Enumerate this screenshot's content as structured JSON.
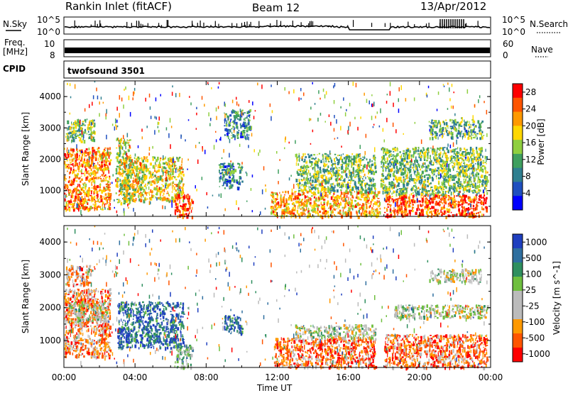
{
  "header": {
    "station": "Rankin Inlet (fitACF)",
    "beam": "Beam 12",
    "date": "13/Apr/2012"
  },
  "panels": {
    "nsky": {
      "label": "N.Sky",
      "right_label": "N.Search",
      "yticks_left": [
        "10^5",
        "10^0"
      ],
      "yticks_right": [
        "10^5",
        "10^0"
      ]
    },
    "freq": {
      "label_line1": "Freq.",
      "label_line2": "[MHz]",
      "right_label": "Nave",
      "yticks_left": [
        "10",
        "8"
      ],
      "yticks_right": [
        "60",
        "0"
      ]
    },
    "cpid": {
      "label": "CPID",
      "value": "twofsound 3501"
    }
  },
  "xaxis": {
    "label": "Time UT",
    "ticks": [
      "00:00",
      "04:00",
      "08:00",
      "12:00",
      "16:00",
      "20:00",
      "00:00"
    ]
  },
  "colors": {
    "power_scale": [
      "#0000ff",
      "#1f4fbf",
      "#2f7f8f",
      "#3f9f5f",
      "#8fcf3f",
      "#ffd700",
      "#ff9900",
      "#ff5500",
      "#ff0000"
    ],
    "velocity_scale": [
      "#ff0000",
      "#ff5500",
      "#ff9900",
      "#bbbbbb",
      "#bbbbbb",
      "#6fbf3f",
      "#2f8f5f",
      "#2f6f9f",
      "#1f3fbf"
    ],
    "ground_scatter": "#bbbbbb"
  },
  "chart_data": [
    {
      "type": "heatmap",
      "name_label": "power",
      "ylabel": "Slant Range [km]",
      "yticks": [
        1000,
        2000,
        3000,
        4000
      ],
      "ylim": [
        180,
        4500
      ],
      "xlabel": "Time UT",
      "xlim_hours": [
        0,
        24
      ],
      "colorbar": {
        "label": "Power [dB]",
        "ticks": [
          "4",
          "8",
          "12",
          "16",
          "20",
          "24",
          "28"
        ],
        "range": [
          0,
          30
        ]
      },
      "regions": [
        {
          "t0": 0.0,
          "t1": 2.6,
          "r0": 400,
          "r1": 2400,
          "level": 0.75
        },
        {
          "t0": 0.1,
          "t1": 1.7,
          "r0": 2600,
          "r1": 3300,
          "level": 0.45
        },
        {
          "t0": 2.9,
          "t1": 3.7,
          "r0": 600,
          "r1": 2700,
          "level": 0.55
        },
        {
          "t0": 3.3,
          "t1": 6.7,
          "r0": 700,
          "r1": 2100,
          "level": 0.6
        },
        {
          "t0": 6.2,
          "t1": 7.2,
          "r0": 200,
          "r1": 900,
          "level": 0.85
        },
        {
          "t0": 8.7,
          "t1": 10.0,
          "r0": 1100,
          "r1": 1900,
          "level": 0.3
        },
        {
          "t0": 9.0,
          "t1": 10.5,
          "r0": 2700,
          "r1": 3600,
          "level": 0.3
        },
        {
          "t0": 11.6,
          "t1": 17.8,
          "r0": 200,
          "r1": 1000,
          "level": 0.7
        },
        {
          "t0": 13.0,
          "t1": 17.5,
          "r0": 1000,
          "r1": 2200,
          "level": 0.45
        },
        {
          "t0": 18.0,
          "t1": 23.8,
          "r0": 200,
          "r1": 900,
          "level": 0.85
        },
        {
          "t0": 17.8,
          "t1": 23.8,
          "r0": 900,
          "r1": 2400,
          "level": 0.45
        },
        {
          "t0": 20.5,
          "t1": 23.5,
          "r0": 2700,
          "r1": 3300,
          "level": 0.4
        }
      ]
    },
    {
      "type": "heatmap",
      "name_label": "velocity",
      "ylabel": "Slant Range [km]",
      "yticks": [
        1000,
        2000,
        3000,
        4000
      ],
      "ylim": [
        180,
        4500
      ],
      "xlabel": "Time UT",
      "xlim_hours": [
        0,
        24
      ],
      "colorbar": {
        "label": "Velocity [m s^-1]",
        "ticks": [
          "1000",
          "500",
          "100",
          "25",
          "-25",
          "-100",
          "-500",
          "-1000"
        ],
        "range": [
          -1000,
          1000
        ]
      },
      "regions": [
        {
          "t0": 0.0,
          "t1": 2.6,
          "r0": 500,
          "r1": 2600,
          "level": 0.25
        },
        {
          "t0": 0.2,
          "t1": 2.4,
          "r0": 1600,
          "r1": 2200,
          "level": 0.5
        },
        {
          "t0": 0.1,
          "t1": 1.5,
          "r0": 2700,
          "r1": 3300,
          "level": 0.3
        },
        {
          "t0": 3.0,
          "t1": 6.7,
          "r0": 800,
          "r1": 2200,
          "level": 0.85
        },
        {
          "t0": 6.2,
          "t1": 7.2,
          "r0": 200,
          "r1": 900,
          "level": 0.62
        },
        {
          "t0": 9.0,
          "t1": 10.0,
          "r0": 1200,
          "r1": 1800,
          "level": 0.85
        },
        {
          "t0": 11.8,
          "t1": 17.5,
          "r0": 200,
          "r1": 1100,
          "level": 0.2
        },
        {
          "t0": 13.0,
          "t1": 17.5,
          "r0": 1100,
          "r1": 1500,
          "level": 0.5
        },
        {
          "t0": 18.0,
          "t1": 23.8,
          "r0": 200,
          "r1": 1200,
          "level": 0.2
        },
        {
          "t0": 18.5,
          "t1": 23.8,
          "r0": 1700,
          "r1": 2100,
          "level": 0.5
        },
        {
          "t0": 20.5,
          "t1": 23.5,
          "r0": 2800,
          "r1": 3200,
          "level": 0.5
        }
      ]
    }
  ]
}
